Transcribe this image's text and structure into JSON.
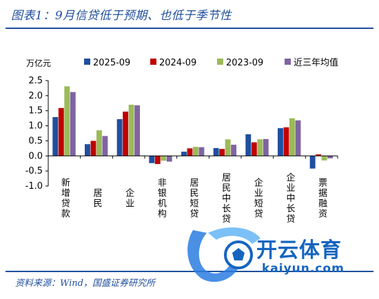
{
  "figure": {
    "title": "图表1：9月信贷低于预期、也低于季节性",
    "source": "资料来源：Wind，国盛证券研究所"
  },
  "watermark": {
    "name": "开云体育",
    "domain": "kaiyun.com"
  },
  "chart_data": {
    "type": "bar",
    "unit_label": "万亿元",
    "categories": [
      "新增贷款",
      "居民",
      "企业",
      "非银机构",
      "居民短贷",
      "居民中长贷",
      "企业短贷",
      "企业中长贷",
      "票据融资"
    ],
    "series": [
      {
        "name": "2025-09",
        "color": "#1f4fa0",
        "values": [
          1.29,
          0.39,
          1.22,
          -0.24,
          0.14,
          0.26,
          0.72,
          0.92,
          -0.42
        ]
      },
      {
        "name": "2024-09",
        "color": "#c00000",
        "values": [
          1.59,
          0.5,
          1.47,
          -0.27,
          0.25,
          0.23,
          0.45,
          0.95,
          0.05
        ]
      },
      {
        "name": "2023-09",
        "color": "#9bbb59",
        "values": [
          2.31,
          0.85,
          1.7,
          -0.16,
          0.3,
          0.55,
          0.55,
          1.25,
          -0.15
        ]
      },
      {
        "name": "近三年均值",
        "color": "#8064a2",
        "values": [
          2.12,
          0.66,
          1.68,
          -0.19,
          0.29,
          0.37,
          0.56,
          1.18,
          -0.08
        ]
      }
    ],
    "ylim": [
      -1.0,
      2.5
    ],
    "yticks": [
      "2.5",
      "2.0",
      "1.5",
      "1.0",
      "0.5",
      "0.0",
      "-0.5",
      "-1.0"
    ],
    "ytick_values": [
      2.5,
      2.0,
      1.5,
      1.0,
      0.5,
      0.0,
      -0.5,
      -1.0
    ],
    "legend_position": "top",
    "grid": false
  }
}
